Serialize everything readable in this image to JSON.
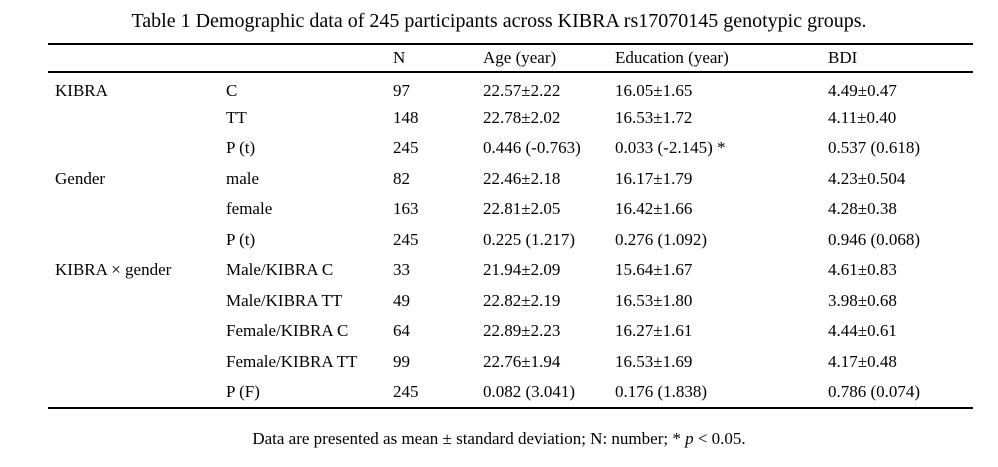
{
  "title": "Table 1 Demographic data of 245 participants across KIBRA rs17070145 genotypic groups.",
  "table": {
    "headers": [
      "",
      "",
      "N",
      "Age (year)",
      "Education (year)",
      "BDI"
    ],
    "rows": [
      {
        "group": "KIBRA",
        "sub": "C",
        "n": "97",
        "age": "22.57±2.22",
        "edu": "16.05±1.65",
        "bdi": "4.49±0.47"
      },
      {
        "group": "",
        "sub": "TT",
        "n": "148",
        "age": "22.78±2.02",
        "edu": "16.53±1.72",
        "bdi": "4.11±0.40"
      },
      {
        "group": "",
        "sub": "P (t)",
        "n": "245",
        "age": "0.446 (-0.763)",
        "edu": "0.033 (-2.145) *",
        "bdi": "0.537 (0.618)"
      },
      {
        "group": "Gender",
        "sub": "male",
        "n": "82",
        "age": "22.46±2.18",
        "edu": "16.17±1.79",
        "bdi": "4.23±0.504"
      },
      {
        "group": "",
        "sub": "female",
        "n": "163",
        "age": "22.81±2.05",
        "edu": "16.42±1.66",
        "bdi": "4.28±0.38"
      },
      {
        "group": "",
        "sub": "P (t)",
        "n": "245",
        "age": "0.225 (1.217)",
        "edu": "0.276 (1.092)",
        "bdi": "0.946 (0.068)"
      },
      {
        "group": "KIBRA × gender",
        "sub": "Male/KIBRA C",
        "n": "33",
        "age": "21.94±2.09",
        "edu": "15.64±1.67",
        "bdi": "4.61±0.83"
      },
      {
        "group": "",
        "sub": "Male/KIBRA TT",
        "n": "49",
        "age": "22.82±2.19",
        "edu": "16.53±1.80",
        "bdi": "3.98±0.68"
      },
      {
        "group": "",
        "sub": "Female/KIBRA C",
        "n": "64",
        "age": "22.89±2.23",
        "edu": "16.27±1.61",
        "bdi": "4.44±0.61"
      },
      {
        "group": "",
        "sub": "Female/KIBRA TT",
        "n": "99",
        "age": "22.76±1.94",
        "edu": "16.53±1.69",
        "bdi": "4.17±0.48"
      },
      {
        "group": "",
        "sub": "P (F)",
        "n": "245",
        "age": "0.082 (3.041)",
        "edu": "0.176 (1.838)",
        "bdi": "0.786 (0.074)"
      }
    ]
  },
  "footnote": {
    "prefix": "Data are presented as mean ± standard deviation; N: number; * ",
    "italic": "p",
    "suffix": " < 0.05."
  }
}
